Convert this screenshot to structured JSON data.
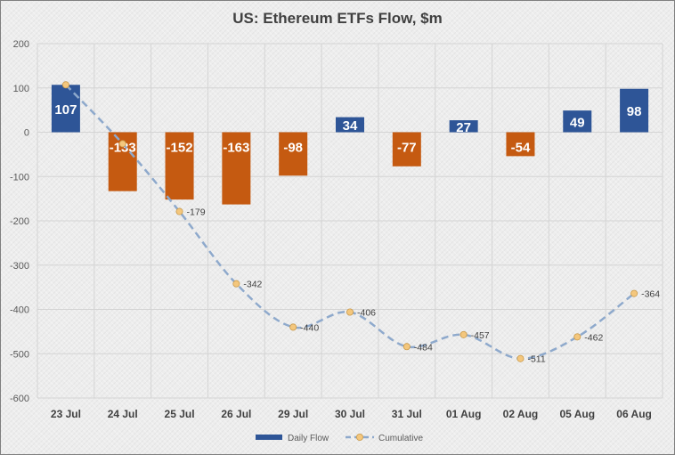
{
  "chart_data": {
    "type": "bar",
    "title": "US: Ethereum ETFs Flow, $m",
    "categories": [
      "23 Jul",
      "24 Jul",
      "25 Jul",
      "26 Jul",
      "29 Jul",
      "30 Jul",
      "31 Jul",
      "01 Aug",
      "02 Aug",
      "05 Aug",
      "06 Aug"
    ],
    "series": [
      {
        "name": "Daily Flow",
        "type": "bar",
        "values": [
          107,
          -133,
          -152,
          -163,
          -98,
          34,
          -77,
          27,
          -54,
          49,
          98
        ],
        "positive_color": "#2e5597",
        "negative_color": "#c55a11"
      },
      {
        "name": "Cumulative",
        "type": "line",
        "values": [
          107,
          -26,
          -179,
          -342,
          -440,
          -406,
          -484,
          -457,
          -511,
          -462,
          -364
        ],
        "line_color": "#8ea9cc",
        "marker_color": "#f4c77d",
        "show_labels_from_index": 2
      }
    ],
    "ylim": [
      -600,
      200
    ],
    "yticks": [
      200,
      100,
      0,
      -100,
      -200,
      -300,
      -400,
      -500,
      -600
    ],
    "xlabel": "",
    "ylabel": "",
    "grid": true,
    "legend_position": "bottom"
  }
}
